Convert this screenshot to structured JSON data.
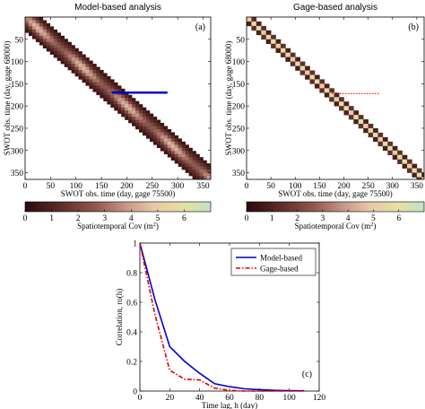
{
  "chart_data": [
    {
      "id": "a",
      "type": "heatmap",
      "title": "Model-based analysis",
      "panel_label": "(a)",
      "xlabel": "SWOT obs. time (day, gage 75500)",
      "ylabel": "SWOT obs. time (day, gage 68000)",
      "xlim": [
        0,
        365
      ],
      "ylim": [
        365,
        0
      ],
      "xticks": [
        0,
        50,
        100,
        150,
        200,
        250,
        300,
        350
      ],
      "yticks": [
        50,
        100,
        150,
        200,
        250,
        300,
        350
      ],
      "cell_days": 7,
      "band_half_width_cells": 4,
      "colorbar": {
        "label": "Spatiotemporal Cov (m",
        "label_sup": "2",
        "label_close": ")",
        "range": [
          0,
          7
        ],
        "ticks": [
          0,
          1,
          2,
          3,
          4,
          5,
          6
        ]
      },
      "marker": {
        "color": "#0000cc",
        "style": "solid",
        "x_range": [
          170,
          280
        ],
        "y": 170
      }
    },
    {
      "id": "b",
      "type": "heatmap",
      "title": "Gage-based analysis",
      "panel_label": "(b)",
      "xlabel": "SWOT obs. time (day, gage 75500)",
      "ylabel": "SWOT obs. time (day, gage 68000)",
      "xlim": [
        0,
        365
      ],
      "ylim": [
        365,
        0
      ],
      "xticks": [
        0,
        50,
        100,
        150,
        200,
        250,
        300,
        350
      ],
      "yticks": [
        50,
        100,
        150,
        200,
        250,
        300,
        350
      ],
      "cell_days": 10,
      "band_half_width_cells": 1,
      "colorbar": {
        "label": "Spatiotemporal Cov (m",
        "label_sup": "2",
        "label_close": ")",
        "range": [
          0,
          7
        ],
        "ticks": [
          0,
          1,
          2,
          3,
          4,
          5,
          6
        ]
      },
      "marker": {
        "color": "#ff0000",
        "style": "dotted",
        "x_range": [
          175,
          275
        ],
        "y": 172
      }
    },
    {
      "id": "c",
      "type": "line",
      "panel_label": "(c)",
      "xlabel": "Time lag, h (day)",
      "ylabel": "Correlation, ro(h)",
      "xlim": [
        0,
        120
      ],
      "ylim": [
        0,
        1
      ],
      "xticks": [
        0,
        20,
        40,
        60,
        80,
        100,
        120
      ],
      "yticks": [
        0,
        0.2,
        0.4,
        0.6,
        0.8,
        1
      ],
      "legend": "top-right",
      "series": [
        {
          "name": "Model-based",
          "color": "#0000cc",
          "dash": "solid",
          "x": [
            0,
            10,
            20,
            30,
            40,
            50,
            60,
            70,
            80,
            90,
            100,
            110
          ],
          "y": [
            1.0,
            0.62,
            0.3,
            0.2,
            0.12,
            0.05,
            0.03,
            0.015,
            0.01,
            0.005,
            0.003,
            0.002
          ]
        },
        {
          "name": "Gage-based",
          "color": "#dd0000",
          "dash": "dashed",
          "x": [
            0,
            10,
            20,
            30,
            40,
            50,
            60,
            70,
            80,
            90,
            100,
            110
          ],
          "y": [
            1.0,
            0.52,
            0.14,
            0.08,
            0.075,
            0.02,
            0.005,
            0.0,
            0.0,
            0.0,
            0.0,
            0.0
          ]
        }
      ]
    }
  ]
}
